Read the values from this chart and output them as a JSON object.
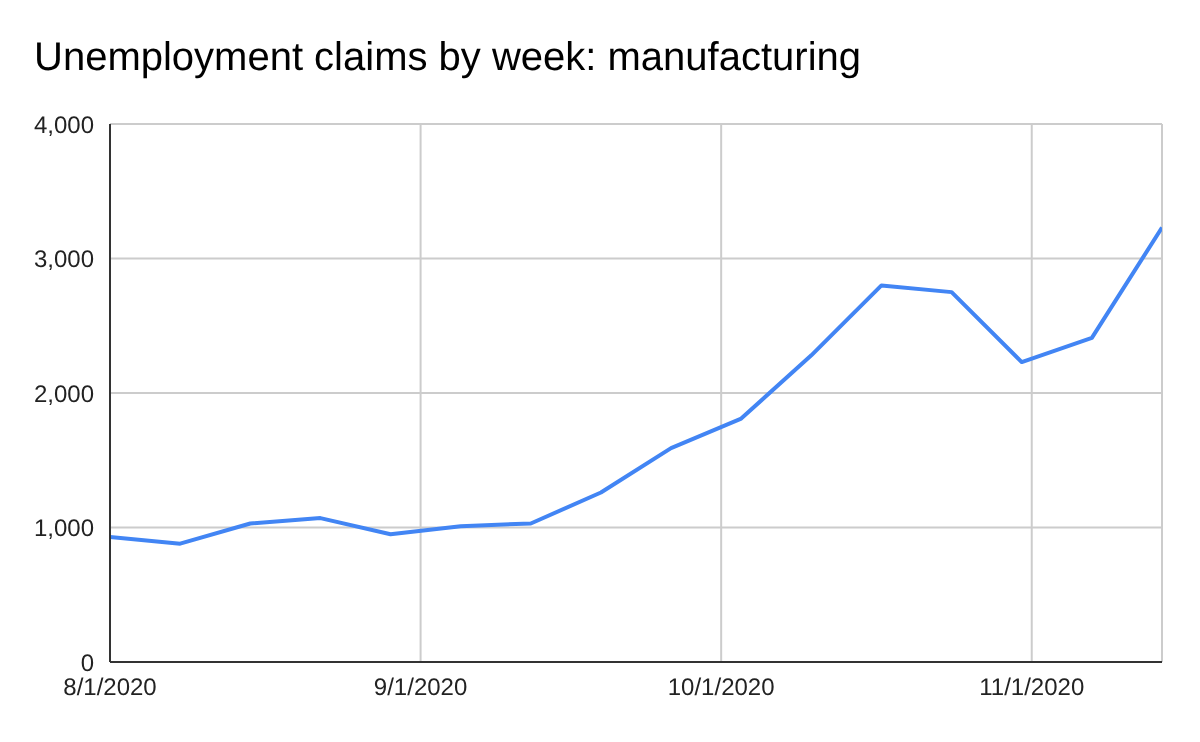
{
  "chart_data": {
    "type": "line",
    "title": "Unemployment claims by week: manufacturing",
    "x": [
      "2020-08-01",
      "2020-08-08",
      "2020-08-15",
      "2020-08-22",
      "2020-08-29",
      "2020-09-05",
      "2020-09-12",
      "2020-09-19",
      "2020-09-26",
      "2020-10-03",
      "2020-10-10",
      "2020-10-17",
      "2020-10-24",
      "2020-10-31",
      "2020-11-07",
      "2020-11-14"
    ],
    "series": [
      {
        "color": "#4285f4",
        "values": [
          930,
          880,
          1030,
          1070,
          950,
          1010,
          1030,
          1260,
          1590,
          1810,
          2280,
          2800,
          2750,
          2230,
          2410,
          3230
        ]
      }
    ],
    "xlim": [
      "2020-08-01",
      "2020-11-14"
    ],
    "xticks": [
      {
        "value": "2020-08-01",
        "label": "8/1/2020"
      },
      {
        "value": "2020-09-01",
        "label": "9/1/2020"
      },
      {
        "value": "2020-10-01",
        "label": "10/1/2020"
      },
      {
        "value": "2020-11-01",
        "label": "11/1/2020"
      }
    ],
    "ylim": [
      0,
      4000
    ],
    "yticks": [
      0,
      {
        "value": 1000,
        "label": "1,000"
      },
      {
        "value": 2000,
        "label": "2,000"
      },
      {
        "value": 3000,
        "label": "3,000"
      },
      {
        "value": 4000,
        "label": "4,000"
      }
    ],
    "grid": true,
    "legend": false,
    "marker": "none",
    "line_style": "solid"
  }
}
